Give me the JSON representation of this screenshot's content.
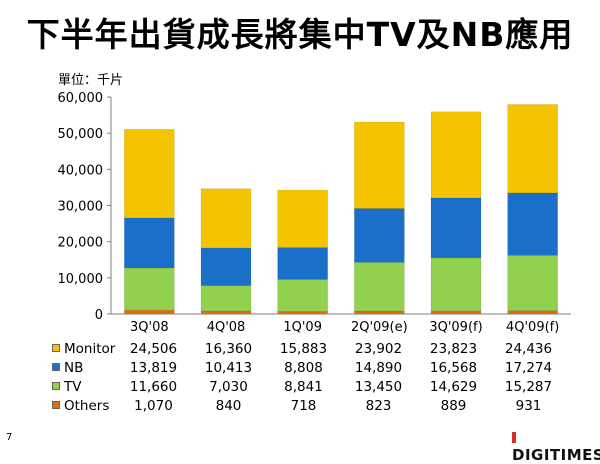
{
  "page": {
    "title": "下半年出貨成長將集中TV及NB應用",
    "unit_label": "單位：千片",
    "slide_number": "7",
    "logo_text": "DIGITIMES"
  },
  "chart_data": {
    "type": "bar",
    "stacked": true,
    "title": "",
    "xlabel": "",
    "ylabel": "",
    "unit": "單位：千片",
    "ylim": [
      0,
      60000
    ],
    "yticks": [
      0,
      10000,
      20000,
      30000,
      40000,
      50000,
      60000
    ],
    "ytick_labels": [
      "0",
      "10,000",
      "20,000",
      "30,000",
      "40,000",
      "50,000",
      "60,000"
    ],
    "grid": false,
    "legend": "data-table-below",
    "categories": [
      "3Q'08",
      "4Q'08",
      "1Q'09",
      "2Q'09(e)",
      "3Q'09(f)",
      "4Q'09(f)"
    ],
    "series": [
      {
        "name": "Monitor",
        "color": "#f5c400",
        "values": [
          24506,
          16360,
          15883,
          23902,
          23823,
          24436
        ],
        "labels": [
          "24,506",
          "16,360",
          "15,883",
          "23,902",
          "23,823",
          "24,436"
        ]
      },
      {
        "name": "NB",
        "color": "#1a6fc9",
        "values": [
          13819,
          10413,
          8808,
          14890,
          16568,
          17274
        ],
        "labels": [
          "13,819",
          "10,413",
          "8,808",
          "14,890",
          "16,568",
          "17,274"
        ]
      },
      {
        "name": "TV",
        "color": "#92d050",
        "values": [
          11660,
          7030,
          8841,
          13450,
          14629,
          15287
        ],
        "labels": [
          "11,660",
          "7,030",
          "8,841",
          "13,450",
          "14,629",
          "15,287"
        ]
      },
      {
        "name": "Others",
        "color": "#e36c0a",
        "values": [
          1070,
          840,
          718,
          823,
          889,
          931
        ],
        "labels": [
          "1,070",
          "840",
          "718",
          "823",
          "889",
          "931"
        ]
      }
    ]
  }
}
